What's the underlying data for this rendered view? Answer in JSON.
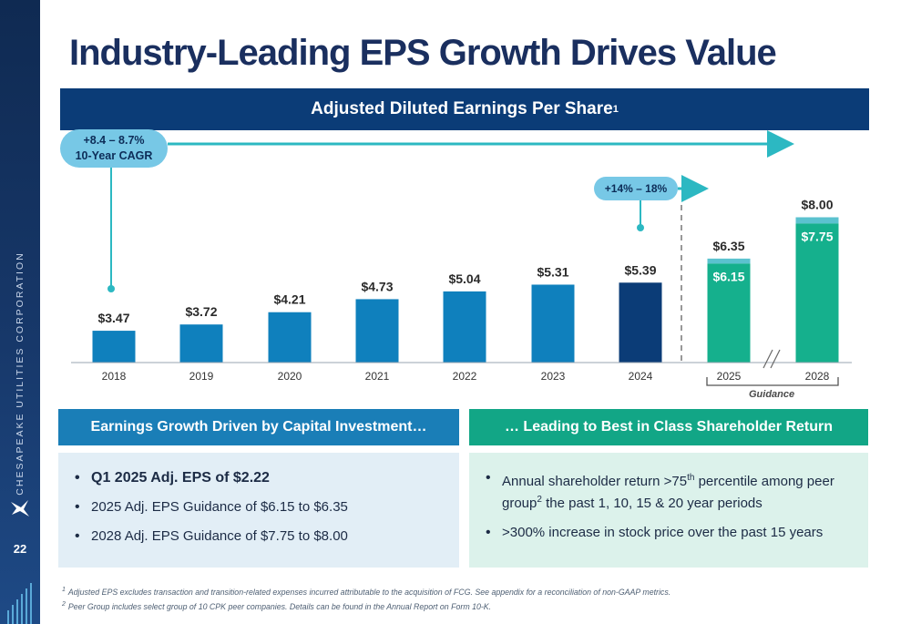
{
  "title": "Industry-Leading EPS Growth Drives Value",
  "banner": {
    "text": "Adjusted Diluted Earnings Per Share",
    "sup": "1"
  },
  "sidebar": {
    "company": "CHESAPEAKE UTILITIES CORPORATION",
    "page_number": "22"
  },
  "callouts": {
    "cagr_line1": "+8.4 – 8.7%",
    "cagr_line2": "10-Year CAGR",
    "growth": "+14% – 18%",
    "guidance": "Guidance"
  },
  "colors": {
    "historical_bar": "#0f80bd",
    "latest_bar": "#0b3c77",
    "guidance_bar": "#15b08d",
    "guidance_top": "#5bc2cf",
    "arrow": "#2cb8c2",
    "callout": "#77c8e6"
  },
  "chart_data": {
    "type": "bar",
    "title": "Adjusted Diluted Earnings Per Share",
    "categories": [
      "2018",
      "2019",
      "2020",
      "2021",
      "2022",
      "2023",
      "2024",
      "2025",
      "2028"
    ],
    "values": [
      3.47,
      3.72,
      4.21,
      4.73,
      5.04,
      5.31,
      5.39,
      6.35,
      8.0
    ],
    "labels": [
      "$3.47",
      "$3.72",
      "$4.21",
      "$4.73",
      "$5.04",
      "$5.31",
      "$5.39",
      "$6.35",
      "$8.00"
    ],
    "guidance_low": {
      "2025": 6.15,
      "2028": 7.75
    },
    "guidance_low_labels": {
      "2025": "$6.15",
      "2028": "$7.75"
    },
    "highlight": "2024",
    "guidance_categories": [
      "2025",
      "2028"
    ],
    "axis_break_between": [
      "2025",
      "2028"
    ],
    "grid": false,
    "legend": "none"
  },
  "panels": {
    "left": {
      "heading": "Earnings Growth Driven by Capital Investment…",
      "bullets": [
        "Q1 2025 Adj. EPS of $2.22",
        "2025 Adj. EPS Guidance of $6.15 to $6.35",
        "2028 Adj. EPS Guidance of $7.75 to $8.00"
      ]
    },
    "right": {
      "heading": "… Leading to Best in Class Shareholder Return",
      "bullet1_a": "Annual shareholder return >75",
      "bullet1_sup": "th",
      "bullet1_b": " percentile among peer group",
      "bullet1_sup2": "2",
      "bullet1_c": " the past 1, 10, 15 & 20 year periods",
      "bullet2": ">300% increase in stock price over the past 15 years"
    }
  },
  "footnotes": [
    {
      "num": "1",
      "text": "Adjusted EPS excludes transaction and transition-related expenses incurred attributable to the acquisition of FCG. See appendix for a reconciliation of non-GAAP metrics."
    },
    {
      "num": "2",
      "text": "Peer Group includes select group of 10 CPK peer companies. Details can be found in the Annual Report on Form 10-K."
    }
  ]
}
